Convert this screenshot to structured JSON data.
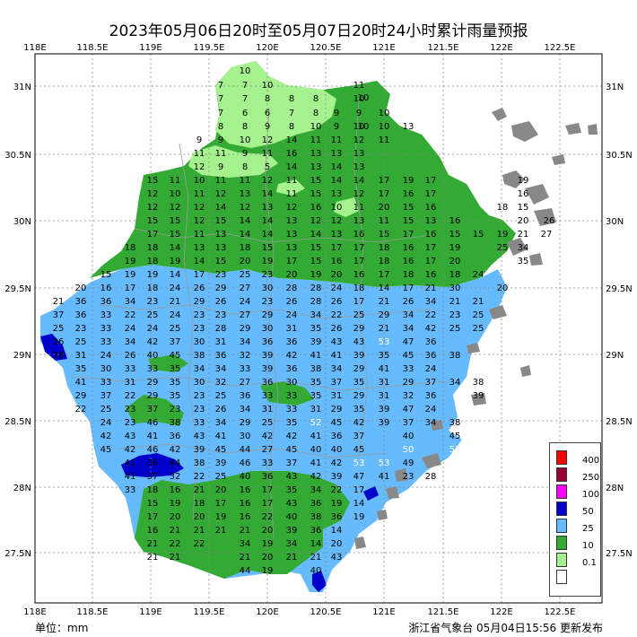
{
  "title": "2023年05月06日20时至05月07日20时24小时累计雨量预报",
  "x_ticks": [
    "118E",
    "118.5E",
    "119E",
    "119.5E",
    "120E",
    "120.5E",
    "121E",
    "121.5E",
    "122E",
    "122.5E"
  ],
  "y_ticks": [
    "31N",
    "30.5N",
    "30N",
    "29.5N",
    "29N",
    "28.5N",
    "28N",
    "27.5N"
  ],
  "legend": {
    "labels": [
      "400",
      "250",
      "100",
      "50",
      "25",
      "10",
      "0.1"
    ],
    "colors": [
      "#ff0000",
      "#990033",
      "#ff00ff",
      "#0000cc",
      "#66bbff",
      "#33aa33",
      "#a6f28f",
      "#ffffff"
    ]
  },
  "unit": "单位：mm",
  "source": "浙江省气象台 05月04日15:56 更新发布",
  "values": [
    {
      "v": "10"
    },
    {
      "v": "11"
    },
    {
      "v": "7"
    },
    {
      "v": "7"
    },
    {
      "v": "10"
    },
    {
      "v": "10"
    },
    {
      "v": "7"
    },
    {
      "v": "7"
    },
    {
      "v": "8"
    },
    {
      "v": "8"
    },
    {
      "v": "8"
    },
    {
      "v": "10"
    },
    {
      "v": "7"
    },
    {
      "v": "6"
    },
    {
      "v": "6"
    },
    {
      "v": "7"
    },
    {
      "v": "8"
    },
    {
      "v": "9"
    },
    {
      "v": "9"
    },
    {
      "v": "10"
    },
    {
      "v": "8"
    },
    {
      "v": "8"
    },
    {
      "v": "9"
    },
    {
      "v": "8"
    },
    {
      "v": "10"
    },
    {
      "v": "9"
    },
    {
      "v": "10"
    },
    {
      "v": "10"
    },
    {
      "v": "10"
    },
    {
      "v": "13"
    },
    {
      "v": "9"
    },
    {
      "v": "9"
    },
    {
      "v": "10"
    },
    {
      "v": "12"
    },
    {
      "v": "14"
    },
    {
      "v": "11"
    },
    {
      "v": "11"
    },
    {
      "v": "12"
    },
    {
      "v": "11"
    },
    {
      "v": "11"
    },
    {
      "v": "11"
    },
    {
      "v": "9"
    },
    {
      "v": "11"
    },
    {
      "v": "16"
    },
    {
      "v": "13"
    },
    {
      "v": "13"
    },
    {
      "v": "13"
    },
    {
      "v": "12"
    },
    {
      "v": "9"
    },
    {
      "v": "8"
    },
    {
      "v": "5"
    },
    {
      "v": "14"
    },
    {
      "v": "13"
    },
    {
      "v": "14"
    },
    {
      "v": "13"
    },
    {
      "v": "15"
    },
    {
      "v": "11"
    },
    {
      "v": "10"
    },
    {
      "v": "11"
    },
    {
      "v": "11"
    },
    {
      "v": "12"
    },
    {
      "v": "11"
    },
    {
      "v": "15"
    },
    {
      "v": "14"
    },
    {
      "v": "14"
    },
    {
      "v": "17"
    },
    {
      "v": "19"
    },
    {
      "v": "17"
    },
    {
      "v": "19"
    },
    {
      "v": "12"
    },
    {
      "v": "10"
    },
    {
      "v": "11"
    },
    {
      "v": "12"
    },
    {
      "v": "13"
    },
    {
      "v": "14"
    },
    {
      "v": "11"
    },
    {
      "v": "15"
    },
    {
      "v": "13"
    },
    {
      "v": "12"
    },
    {
      "v": "17"
    },
    {
      "v": "16"
    },
    {
      "v": "17"
    },
    {
      "v": "16"
    },
    {
      "v": "12"
    },
    {
      "v": "12"
    },
    {
      "v": "12"
    },
    {
      "v": "14"
    },
    {
      "v": "12"
    },
    {
      "v": "13"
    },
    {
      "v": "12"
    },
    {
      "v": "16"
    },
    {
      "v": "10"
    },
    {
      "v": "11"
    },
    {
      "v": "20"
    },
    {
      "v": "15"
    },
    {
      "v": "16"
    },
    {
      "v": "18"
    },
    {
      "v": "15"
    },
    {
      "v": "15"
    },
    {
      "v": "15"
    },
    {
      "v": "12"
    },
    {
      "v": "15"
    },
    {
      "v": "14"
    },
    {
      "v": "14"
    },
    {
      "v": "13"
    },
    {
      "v": "12"
    },
    {
      "v": "12"
    },
    {
      "v": "13"
    },
    {
      "v": "11"
    },
    {
      "v": "15"
    },
    {
      "v": "13"
    },
    {
      "v": "16"
    },
    {
      "v": "20"
    },
    {
      "v": "26"
    },
    {
      "v": "17"
    },
    {
      "v": "15"
    },
    {
      "v": "11"
    },
    {
      "v": "13"
    },
    {
      "v": "14"
    },
    {
      "v": "14"
    },
    {
      "v": "13"
    },
    {
      "v": "14"
    },
    {
      "v": "13"
    },
    {
      "v": "16"
    },
    {
      "v": "15"
    },
    {
      "v": "17"
    },
    {
      "v": "16"
    },
    {
      "v": "15"
    },
    {
      "v": "15"
    },
    {
      "v": "19"
    },
    {
      "v": "21"
    },
    {
      "v": "27"
    },
    {
      "v": "18"
    },
    {
      "v": "18"
    },
    {
      "v": "14"
    },
    {
      "v": "13"
    },
    {
      "v": "13"
    },
    {
      "v": "18"
    },
    {
      "v": "15"
    },
    {
      "v": "13"
    },
    {
      "v": "15"
    },
    {
      "v": "17"
    },
    {
      "v": "17"
    },
    {
      "v": "18"
    },
    {
      "v": "16"
    },
    {
      "v": "17"
    },
    {
      "v": "19"
    },
    {
      "v": "25"
    },
    {
      "v": "34"
    },
    {
      "v": "19"
    },
    {
      "v": "18"
    },
    {
      "v": "19"
    },
    {
      "v": "14"
    },
    {
      "v": "15"
    },
    {
      "v": "20"
    },
    {
      "v": "19"
    },
    {
      "v": "17"
    },
    {
      "v": "15"
    },
    {
      "v": "16"
    },
    {
      "v": "17"
    },
    {
      "v": "18"
    },
    {
      "v": "16"
    },
    {
      "v": "17"
    },
    {
      "v": "20"
    },
    {
      "v": "35"
    },
    {
      "v": "15"
    },
    {
      "v": "19"
    },
    {
      "v": "19"
    },
    {
      "v": "14"
    },
    {
      "v": "17"
    },
    {
      "v": "23"
    },
    {
      "v": "25"
    },
    {
      "v": "23"
    },
    {
      "v": "20"
    },
    {
      "v": "19"
    },
    {
      "v": "20"
    },
    {
      "v": "16"
    },
    {
      "v": "17"
    },
    {
      "v": "18"
    },
    {
      "v": "16"
    },
    {
      "v": "18"
    },
    {
      "v": "24"
    },
    {
      "v": "20"
    },
    {
      "v": "16"
    },
    {
      "v": "17"
    },
    {
      "v": "18"
    },
    {
      "v": "24"
    },
    {
      "v": "26"
    },
    {
      "v": "29"
    },
    {
      "v": "27"
    },
    {
      "v": "30"
    },
    {
      "v": "28"
    },
    {
      "v": "28"
    },
    {
      "v": "24"
    },
    {
      "v": "18"
    },
    {
      "v": "14"
    },
    {
      "v": "17"
    },
    {
      "v": "21"
    },
    {
      "v": "30"
    },
    {
      "v": "20"
    },
    {
      "v": "21"
    },
    {
      "v": "36"
    },
    {
      "v": "36"
    },
    {
      "v": "34"
    },
    {
      "v": "23"
    },
    {
      "v": "21"
    },
    {
      "v": "29"
    },
    {
      "v": "26"
    },
    {
      "v": "24"
    },
    {
      "v": "23"
    },
    {
      "v": "26"
    },
    {
      "v": "28"
    },
    {
      "v": "26"
    },
    {
      "v": "17"
    },
    {
      "v": "21"
    },
    {
      "v": "26"
    },
    {
      "v": "34"
    },
    {
      "v": "21"
    },
    {
      "v": "21"
    },
    {
      "v": "37"
    },
    {
      "v": "36"
    },
    {
      "v": "33"
    },
    {
      "v": "22"
    },
    {
      "v": "25"
    },
    {
      "v": "24"
    },
    {
      "v": "23"
    },
    {
      "v": "23"
    },
    {
      "v": "27"
    },
    {
      "v": "29"
    },
    {
      "v": "24"
    },
    {
      "v": "34"
    },
    {
      "v": "22"
    },
    {
      "v": "25"
    },
    {
      "v": "29"
    },
    {
      "v": "34"
    },
    {
      "v": "22"
    },
    {
      "v": "23"
    },
    {
      "v": "25"
    },
    {
      "v": "25"
    },
    {
      "v": "23"
    },
    {
      "v": "33"
    },
    {
      "v": "24"
    },
    {
      "v": "24"
    },
    {
      "v": "25"
    },
    {
      "v": "23"
    },
    {
      "v": "28"
    },
    {
      "v": "29"
    },
    {
      "v": "30"
    },
    {
      "v": "31"
    },
    {
      "v": "35"
    },
    {
      "v": "26"
    },
    {
      "v": "29"
    },
    {
      "v": "21"
    },
    {
      "v": "34"
    },
    {
      "v": "42"
    },
    {
      "v": "25"
    },
    {
      "v": "25"
    },
    {
      "v": "26"
    },
    {
      "v": "25"
    },
    {
      "v": "33"
    },
    {
      "v": "34"
    },
    {
      "v": "42"
    },
    {
      "v": "37"
    },
    {
      "v": "30"
    },
    {
      "v": "31"
    },
    {
      "v": "34"
    },
    {
      "v": "36"
    },
    {
      "v": "36"
    },
    {
      "v": "39"
    },
    {
      "v": "43"
    },
    {
      "v": "43"
    },
    {
      "v": "53"
    },
    {
      "v": "47"
    },
    {
      "v": "36"
    },
    {
      "v": "28"
    },
    {
      "v": "31"
    },
    {
      "v": "24"
    },
    {
      "v": "26"
    },
    {
      "v": "40"
    },
    {
      "v": "45"
    },
    {
      "v": "38"
    },
    {
      "v": "36"
    },
    {
      "v": "32"
    },
    {
      "v": "39"
    },
    {
      "v": "42"
    },
    {
      "v": "41"
    },
    {
      "v": "41"
    },
    {
      "v": "39"
    },
    {
      "v": "35"
    },
    {
      "v": "45"
    },
    {
      "v": "36"
    },
    {
      "v": "38"
    },
    {
      "v": "35"
    },
    {
      "v": "30"
    },
    {
      "v": "33"
    },
    {
      "v": "33"
    },
    {
      "v": "35"
    },
    {
      "v": "34"
    },
    {
      "v": "34"
    },
    {
      "v": "33"
    },
    {
      "v": "39"
    },
    {
      "v": "36"
    },
    {
      "v": "38"
    },
    {
      "v": "34"
    },
    {
      "v": "29"
    },
    {
      "v": "41"
    },
    {
      "v": "33"
    },
    {
      "v": "24"
    },
    {
      "v": "41"
    },
    {
      "v": "33"
    },
    {
      "v": "31"
    },
    {
      "v": "29"
    },
    {
      "v": "35"
    },
    {
      "v": "30"
    },
    {
      "v": "32"
    },
    {
      "v": "27"
    },
    {
      "v": "36"
    },
    {
      "v": "30"
    },
    {
      "v": "35"
    },
    {
      "v": "37"
    },
    {
      "v": "35"
    },
    {
      "v": "31"
    },
    {
      "v": "29"
    },
    {
      "v": "37"
    },
    {
      "v": "34"
    },
    {
      "v": "38"
    },
    {
      "v": "29"
    },
    {
      "v": "37"
    },
    {
      "v": "22"
    },
    {
      "v": "29"
    },
    {
      "v": "35"
    },
    {
      "v": "23"
    },
    {
      "v": "25"
    },
    {
      "v": "36"
    },
    {
      "v": "33"
    },
    {
      "v": "33"
    },
    {
      "v": "35"
    },
    {
      "v": "31"
    },
    {
      "v": "29"
    },
    {
      "v": "31"
    },
    {
      "v": "32"
    },
    {
      "v": "36"
    },
    {
      "v": "39"
    },
    {
      "v": "22"
    },
    {
      "v": "25"
    },
    {
      "v": "23"
    },
    {
      "v": "37"
    },
    {
      "v": "23"
    },
    {
      "v": "23"
    },
    {
      "v": "26"
    },
    {
      "v": "34"
    },
    {
      "v": "31"
    },
    {
      "v": "33"
    },
    {
      "v": "31"
    },
    {
      "v": "29"
    },
    {
      "v": "35"
    },
    {
      "v": "39"
    },
    {
      "v": "47"
    },
    {
      "v": "24"
    },
    {
      "v": "24"
    },
    {
      "v": "23"
    },
    {
      "v": "46"
    },
    {
      "v": "38"
    },
    {
      "v": "33"
    },
    {
      "v": "34"
    },
    {
      "v": "29"
    },
    {
      "v": "25"
    },
    {
      "v": "35"
    },
    {
      "v": "52"
    },
    {
      "v": "45"
    },
    {
      "v": "42"
    },
    {
      "v": "39"
    },
    {
      "v": "37"
    },
    {
      "v": "34"
    },
    {
      "v": "38"
    },
    {
      "v": "42"
    },
    {
      "v": "43"
    },
    {
      "v": "41"
    },
    {
      "v": "36"
    },
    {
      "v": "43"
    },
    {
      "v": "41"
    },
    {
      "v": "30"
    },
    {
      "v": "42"
    },
    {
      "v": "42"
    },
    {
      "v": "41"
    },
    {
      "v": "36"
    },
    {
      "v": "37"
    },
    {
      "v": "40"
    },
    {
      "v": "45"
    },
    {
      "v": "45"
    },
    {
      "v": "42"
    },
    {
      "v": "46"
    },
    {
      "v": "42"
    },
    {
      "v": "39"
    },
    {
      "v": "45"
    },
    {
      "v": "44"
    },
    {
      "v": "27"
    },
    {
      "v": "45"
    },
    {
      "v": "40"
    },
    {
      "v": "40"
    },
    {
      "v": "45"
    },
    {
      "v": "50"
    },
    {
      "v": "53"
    },
    {
      "v": "41"
    },
    {
      "v": "36"
    },
    {
      "v": "44"
    },
    {
      "v": "38"
    },
    {
      "v": "39"
    },
    {
      "v": "46"
    },
    {
      "v": "33"
    },
    {
      "v": "37"
    },
    {
      "v": "41"
    },
    {
      "v": "42"
    },
    {
      "v": "53"
    },
    {
      "v": "53"
    },
    {
      "v": "49"
    },
    {
      "v": "41"
    },
    {
      "v": "37"
    },
    {
      "v": "32"
    },
    {
      "v": "22"
    },
    {
      "v": "25"
    },
    {
      "v": "40"
    },
    {
      "v": "36"
    },
    {
      "v": "43"
    },
    {
      "v": "42"
    },
    {
      "v": "39"
    },
    {
      "v": "47"
    },
    {
      "v": "41"
    },
    {
      "v": "23"
    },
    {
      "v": "28"
    },
    {
      "v": "33"
    },
    {
      "v": "18"
    },
    {
      "v": "16"
    },
    {
      "v": "21"
    },
    {
      "v": "20"
    },
    {
      "v": "16"
    },
    {
      "v": "17"
    },
    {
      "v": "35"
    },
    {
      "v": "34"
    },
    {
      "v": "22"
    },
    {
      "v": "17"
    },
    {
      "v": "15"
    },
    {
      "v": "19"
    },
    {
      "v": "18"
    },
    {
      "v": "17"
    },
    {
      "v": "16"
    },
    {
      "v": "17"
    },
    {
      "v": "43"
    },
    {
      "v": "36"
    },
    {
      "v": "19"
    },
    {
      "v": "14"
    },
    {
      "v": "17"
    },
    {
      "v": "20"
    },
    {
      "v": "20"
    },
    {
      "v": "19"
    },
    {
      "v": "16"
    },
    {
      "v": "22"
    },
    {
      "v": "40"
    },
    {
      "v": "38"
    },
    {
      "v": "36"
    },
    {
      "v": "19"
    },
    {
      "v": "16"
    },
    {
      "v": "21"
    },
    {
      "v": "21"
    },
    {
      "v": "21"
    },
    {
      "v": "21"
    },
    {
      "v": "20"
    },
    {
      "v": "39"
    },
    {
      "v": "36"
    },
    {
      "v": "14"
    },
    {
      "v": "21"
    },
    {
      "v": "22"
    },
    {
      "v": "22"
    },
    {
      "v": "34"
    },
    {
      "v": "19"
    },
    {
      "v": "34"
    },
    {
      "v": "14"
    },
    {
      "v": "20"
    },
    {
      "v": "21"
    },
    {
      "v": "21"
    },
    {
      "v": "21"
    },
    {
      "v": "20"
    },
    {
      "v": "21"
    },
    {
      "v": "21"
    },
    {
      "v": "43"
    },
    {
      "v": "44"
    },
    {
      "v": "19"
    },
    {
      "v": "40"
    }
  ]
}
